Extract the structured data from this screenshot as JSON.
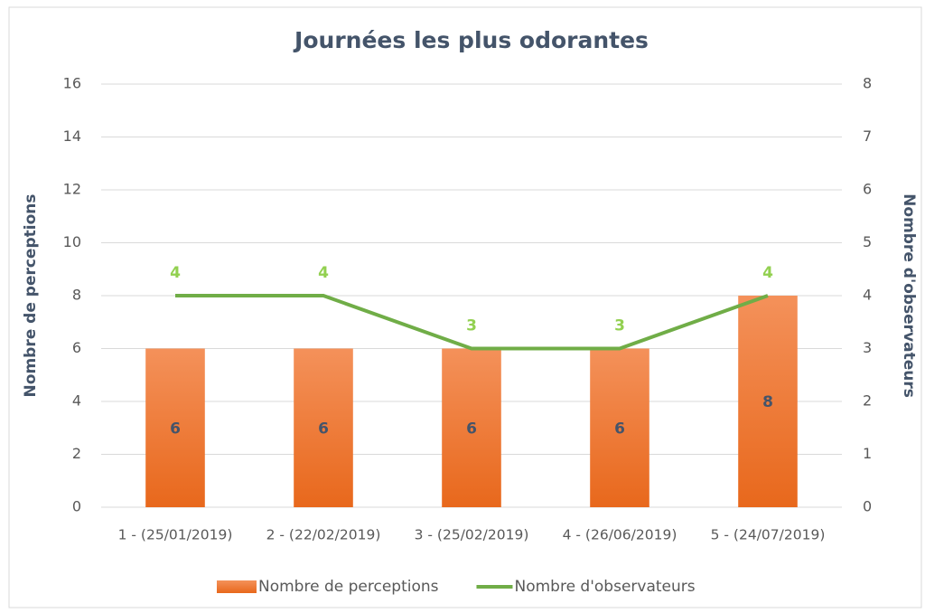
{
  "chart_data": {
    "type": "bar-line",
    "title": "Journées les plus odorantes",
    "ylabel": "Nombre de perceptions",
    "y2label": "Nombre d'observateurs",
    "categories": [
      "1 - (25/01/2019)",
      "2 - (22/02/2019)",
      "3 - (25/02/2019)",
      "4 - (26/06/2019)",
      "5 - (24/07/2019)"
    ],
    "series": [
      {
        "name": "Nombre de perceptions",
        "type": "bar",
        "color": "#ed7d31",
        "values": [
          6,
          6,
          6,
          6,
          8
        ]
      },
      {
        "name": "Nombre d'observateurs",
        "type": "line",
        "axis": "y2",
        "color": "#70ad47",
        "values": [
          4,
          4,
          3,
          3,
          4
        ]
      }
    ],
    "ylim": [
      0,
      16
    ],
    "yticks": [
      0,
      2,
      4,
      6,
      8,
      10,
      12,
      14,
      16
    ],
    "y2lim": [
      0,
      8
    ],
    "y2ticks": [
      0,
      1,
      2,
      3,
      4,
      5,
      6,
      7,
      8
    ],
    "grid": true,
    "legend": "bottom"
  }
}
